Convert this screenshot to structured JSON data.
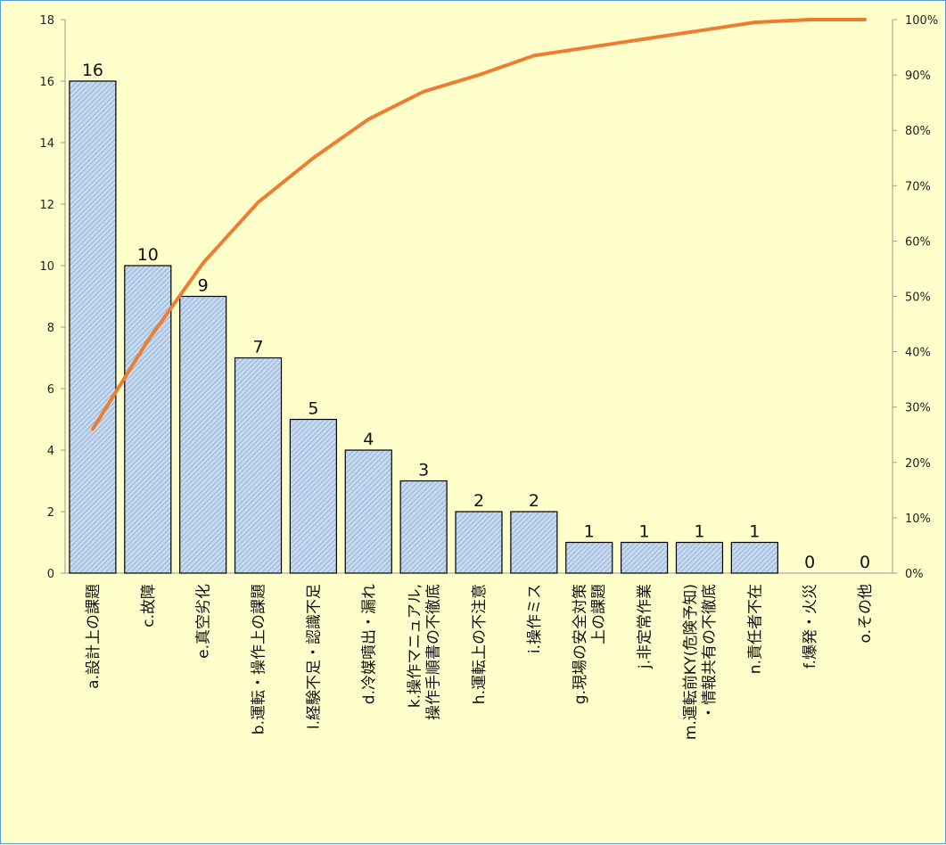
{
  "chart_data": {
    "type": "bar",
    "title": "",
    "xlabel": "",
    "ylabel": "",
    "categories": [
      "a.設計上の課題",
      "c.故障",
      "e.真空劣化",
      "b.運転・操作上の課題",
      "l.経験不足・認識不足",
      "d.冷媒噴出・漏れ",
      "k.操作マニュアル,\n操作手順書の不徹底",
      "h.運転上の不注意",
      "i.操作ミス",
      "g.現場の安全対策\n上の課題",
      "j.非定常作業",
      "m.運転前KY(危険予知)\n・情報共有の不徹底",
      "n.責任者不在",
      "f.爆発・火災",
      "o.その他"
    ],
    "series": [
      {
        "type": "bar",
        "values": [
          16,
          10,
          9,
          7,
          5,
          4,
          3,
          2,
          2,
          1,
          1,
          1,
          1,
          0,
          0
        ],
        "data_labels": [
          "16",
          "10",
          "9",
          "7",
          "5",
          "4",
          "3",
          "2",
          "2",
          "1",
          "1",
          "1",
          "1",
          "0",
          "0"
        ],
        "axis": "left"
      },
      {
        "type": "line",
        "values": [
          26,
          42,
          56,
          67,
          75,
          82,
          87,
          90,
          93.5,
          95,
          96.5,
          98,
          99.5,
          100,
          100
        ],
        "axis": "right"
      }
    ],
    "y_left": {
      "min": 0,
      "max": 18,
      "ticks": [
        "0",
        "2",
        "4",
        "6",
        "8",
        "10",
        "12",
        "14",
        "16",
        "18"
      ]
    },
    "y_right": {
      "min": 0,
      "max": 100,
      "ticks": [
        "0%",
        "10%",
        "20%",
        "30%",
        "40%",
        "50%",
        "60%",
        "70%",
        "80%",
        "90%",
        "100%"
      ]
    },
    "colors": {
      "background": "#ffffcc",
      "bar_fill": "#c5d9f1",
      "bar_hatch": "#8ea9c8",
      "bar_border": "#000000",
      "line": "#ed7d31",
      "frame": "#5b9bd5",
      "axis": "#999999"
    },
    "grid": false,
    "legend": "none"
  }
}
